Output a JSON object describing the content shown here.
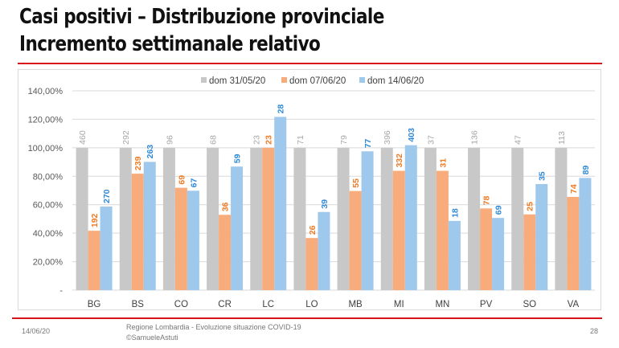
{
  "slide": {
    "title_line1": "Casi positivi – Distribuzione provinciale",
    "title_line2": "Incremento settimanale relativo",
    "accent_color": "#d6141a"
  },
  "footer": {
    "date": "14/06/20",
    "source_line1": "Regione Lombardia - Evoluzione situazione COVID-19",
    "source_line2": "©SamueleAstuti",
    "page_number": "28"
  },
  "chart_data": {
    "type": "bar",
    "title": "",
    "xlabel": "",
    "ylabel": "",
    "ylim": [
      0,
      1.4
    ],
    "yticks": [
      0,
      0.2,
      0.4,
      0.6,
      0.8,
      1.0,
      1.2,
      1.4
    ],
    "ytick_labels": [
      "-",
      "20,00%",
      "40,00%",
      "60,00%",
      "80,00%",
      "100,00%",
      "120,00%",
      "140,00%"
    ],
    "grid": true,
    "legend_position": "top",
    "categories": [
      "BG",
      "BS",
      "CO",
      "CR",
      "LC",
      "LO",
      "MB",
      "MI",
      "MN",
      "PV",
      "SO",
      "VA"
    ],
    "series": [
      {
        "name": "dom 31/05/20",
        "color": "#c8c8c8",
        "label_color": "#a6a6a6",
        "values": [
          1,
          1,
          1,
          1,
          1,
          1,
          1,
          1,
          1,
          1,
          1,
          1
        ],
        "labels": [
          460,
          292,
          96,
          68,
          23,
          71,
          79,
          396,
          37,
          136,
          47,
          113
        ]
      },
      {
        "name": "dom 07/06/20",
        "color": "#f8ac7c",
        "label_color": "#f07a22",
        "values": [
          0.417,
          0.818,
          0.719,
          0.529,
          1.0,
          0.366,
          0.696,
          0.838,
          0.838,
          0.574,
          0.532,
          0.655
        ],
        "labels": [
          192,
          239,
          69,
          36,
          23,
          26,
          55,
          332,
          31,
          78,
          25,
          74
        ]
      },
      {
        "name": "dom 14/06/20",
        "color": "#9ec8ec",
        "label_color": "#2e8ad8",
        "values": [
          0.587,
          0.901,
          0.698,
          0.868,
          1.217,
          0.549,
          0.975,
          1.018,
          0.486,
          0.507,
          0.745,
          0.788
        ],
        "labels": [
          270,
          263,
          67,
          59,
          28,
          39,
          77,
          403,
          18,
          69,
          35,
          89
        ]
      }
    ]
  }
}
